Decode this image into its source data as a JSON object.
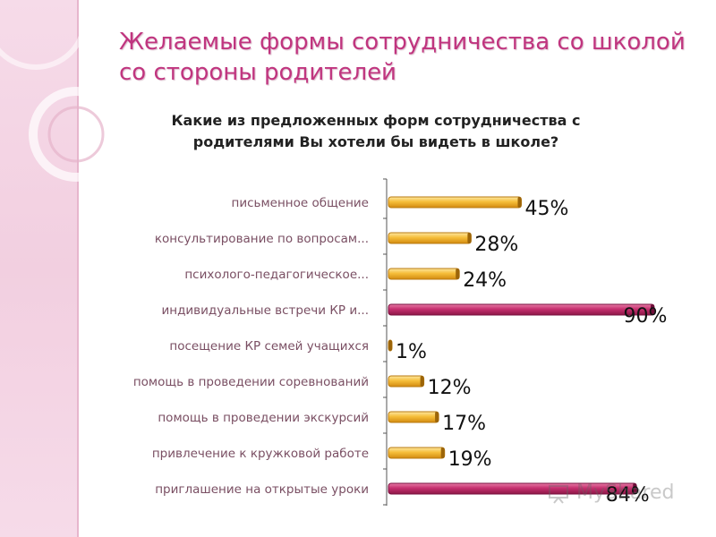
{
  "slide": {
    "title_line1": "Желаемые формы сотрудничества со школой",
    "title_line2": "со стороны родителей",
    "watermark": "MyShared"
  },
  "colors": {
    "accent": "#c0357f",
    "bar_yellow": "#f3b52f",
    "bar_magenta": "#c5306f"
  },
  "chart_data": {
    "type": "bar",
    "orientation": "horizontal",
    "title_line1": "Какие из предложенных форм сотрудничества с",
    "title_line2": "родителями Вы хотели бы видеть в школе?",
    "categories": [
      "письменное общение",
      "консультирование по вопросам...",
      "психолого-педагогическое...",
      "индивидуальные встречи КР и...",
      "посещение КР семей учащихся",
      "помощь в проведении соревнований",
      "помощь в проведении экскурсий",
      "привлечение к кружковой работе",
      "приглашение на открытые уроки"
    ],
    "values": [
      45,
      28,
      24,
      90,
      1,
      12,
      17,
      19,
      84
    ],
    "value_labels": [
      "45%",
      "28%",
      "24%",
      "90%",
      "1%",
      "12%",
      "17%",
      "19%",
      "84%"
    ],
    "highlight": [
      false,
      false,
      false,
      true,
      false,
      false,
      false,
      false,
      true
    ],
    "xlim": [
      0,
      100
    ],
    "grid": false,
    "legend": "none"
  }
}
